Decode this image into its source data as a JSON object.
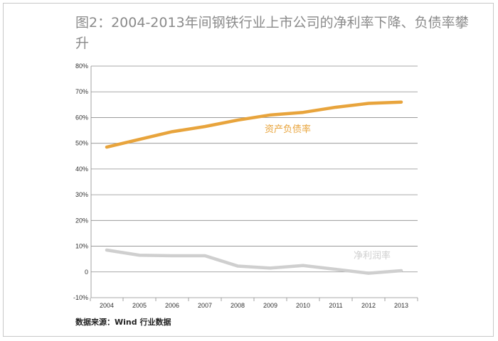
{
  "chart_data": {
    "type": "line",
    "title": "图2：2004-2013年间钢铁行业上市公司的净利率下降、负债率攀升",
    "source": "数据来源：Wind 行业数据",
    "x": [
      "2004",
      "2005",
      "2006",
      "2007",
      "2008",
      "2009",
      "2010",
      "2011",
      "2012",
      "2013"
    ],
    "yticks": [
      "80%",
      "70%",
      "60%",
      "50%",
      "40%",
      "30%",
      "20%",
      "10%",
      "0",
      "-10%"
    ],
    "ylim": [
      -10,
      80
    ],
    "grid": true,
    "series": [
      {
        "name": "资产负债率",
        "color": "#e8a43c",
        "values": [
          48.5,
          51.5,
          54.5,
          56.5,
          59,
          61,
          62,
          64,
          65.5,
          66
        ]
      },
      {
        "name": "净利润率",
        "color": "#cfcfcf",
        "values": [
          8.5,
          6.5,
          6.3,
          6.3,
          2.3,
          1.5,
          2.5,
          1.0,
          -0.5,
          0.5
        ]
      }
    ]
  }
}
